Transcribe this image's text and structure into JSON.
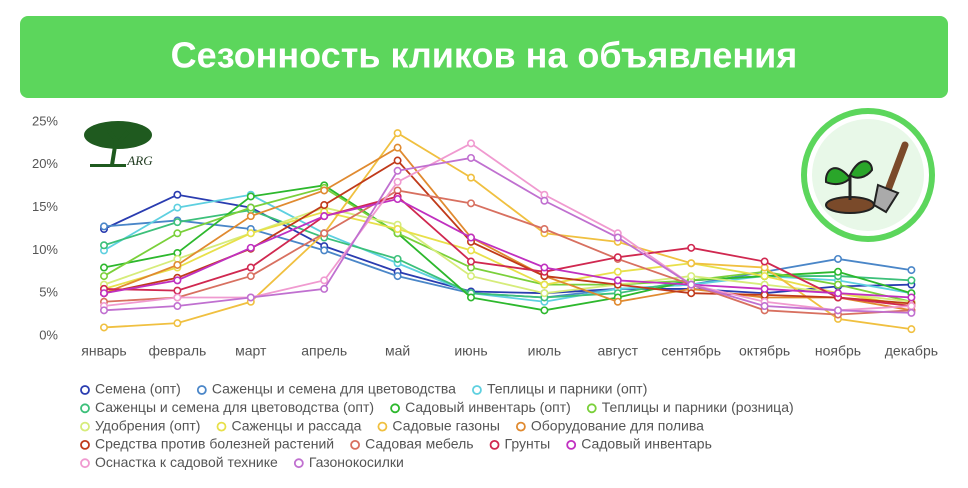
{
  "chart_data": {
    "type": "line",
    "title": "Сезонность кликов на объявления",
    "logo": "ARG",
    "categories": [
      "январь",
      "февраль",
      "март",
      "апрель",
      "май",
      "июнь",
      "июль",
      "август",
      "сентябрь",
      "октябрь",
      "ноябрь",
      "декабрь"
    ],
    "ylim": [
      0,
      25
    ],
    "yticks": [
      {
        "value": 0,
        "label": "0%"
      },
      {
        "value": 5,
        "label": "5%"
      },
      {
        "value": 10,
        "label": "10%"
      },
      {
        "value": 15,
        "label": "15%"
      },
      {
        "value": 20,
        "label": "20%"
      },
      {
        "value": 25,
        "label": "25%"
      }
    ],
    "grid": false,
    "legend": "bottom",
    "series": [
      {
        "name": "Семена (опт)",
        "color": "#2a3cb0",
        "values": [
          12.5,
          16.5,
          15,
          10.5,
          7.5,
          5.2,
          5,
          5.5,
          5.5,
          5,
          5.8,
          6
        ]
      },
      {
        "name": "Саженцы и семена для цветоводства",
        "color": "#4a86c8",
        "values": [
          12.8,
          13.5,
          12.5,
          10,
          7,
          5,
          4.5,
          5.5,
          6,
          7.5,
          9,
          7.7
        ]
      },
      {
        "name": "Теплицы и парники (опт)",
        "color": "#5ed0e0",
        "values": [
          10,
          15,
          16.5,
          12,
          8.5,
          5,
          4,
          5.5,
          6,
          7,
          6.5,
          5
        ]
      },
      {
        "name": "Саженцы и семена для цветоводства (опт)",
        "color": "#3cc07a",
        "values": [
          10.6,
          13.3,
          14.7,
          11.5,
          9,
          5,
          4.5,
          5,
          6.5,
          7,
          7,
          6.5
        ]
      },
      {
        "name": "Садовый инвентарь (опт)",
        "color": "#2db82d",
        "values": [
          8,
          9.7,
          16.3,
          17.6,
          12,
          4.5,
          3,
          4.5,
          6.5,
          7,
          7.5,
          5
        ]
      },
      {
        "name": "Теплицы и парники (розница)",
        "color": "#7ad03a",
        "values": [
          7,
          12,
          15,
          17.3,
          12,
          8,
          6,
          6,
          6.5,
          7.5,
          6,
          4
        ]
      },
      {
        "name": "Удобрения (опт)",
        "color": "#d6ec7a",
        "values": [
          6,
          9,
          12,
          15,
          13,
          7,
          5,
          6,
          7,
          6,
          5,
          4
        ]
      },
      {
        "name": "Саженцы и рассада",
        "color": "#e8e04a",
        "values": [
          5.5,
          8,
          12,
          14.5,
          12.5,
          10,
          6,
          7.5,
          8.5,
          7,
          5,
          3.5
        ]
      },
      {
        "name": "Садовые газоны",
        "color": "#f0c040",
        "values": [
          1,
          1.5,
          4,
          12,
          23.7,
          18.5,
          12,
          11,
          8.5,
          8,
          2,
          0.8
        ]
      },
      {
        "name": "Оборудование для полива",
        "color": "#e08a30",
        "values": [
          5,
          8.3,
          14,
          17,
          22,
          11.5,
          7,
          4,
          5.5,
          4.5,
          4.5,
          3
        ]
      },
      {
        "name": "Средства против болезней растений",
        "color": "#c03a1a",
        "values": [
          5,
          6.8,
          10.2,
          15.3,
          20.5,
          11,
          7,
          6,
          5,
          4.8,
          4.5,
          3.8
        ]
      },
      {
        "name": "Садовая мебель",
        "color": "#d87060",
        "values": [
          4,
          4.5,
          7,
          12,
          17,
          15.5,
          12.5,
          9,
          6,
          3,
          2.5,
          3
        ]
      },
      {
        "name": "Грунты",
        "color": "#d02850",
        "values": [
          5.5,
          5.3,
          8,
          14,
          16.3,
          8.7,
          7.5,
          9.2,
          10.3,
          8.7,
          4.5,
          3.5
        ]
      },
      {
        "name": "Садовый инвентарь",
        "color": "#c030c0",
        "values": [
          5,
          6.5,
          10.3,
          14,
          16,
          11.5,
          8,
          6.5,
          6,
          5.5,
          5,
          4.5
        ]
      },
      {
        "name": "Оснастка к садовой технике",
        "color": "#f09ad0",
        "values": [
          3.5,
          4.5,
          4.5,
          6.5,
          18,
          22.5,
          16.5,
          12,
          6,
          4,
          3,
          3.5
        ]
      },
      {
        "name": "Газонокосилки",
        "color": "#c070d0",
        "values": [
          3,
          3.5,
          4.5,
          5.5,
          19.3,
          20.8,
          15.8,
          11.5,
          6,
          3.5,
          3,
          2.7
        ]
      }
    ]
  }
}
